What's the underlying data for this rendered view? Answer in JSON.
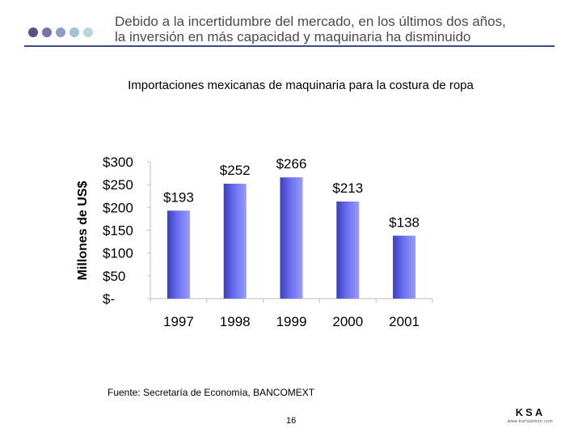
{
  "header": {
    "title_line1": "Debido a la incertidumbre del mercado, en los últimos dos años,",
    "title_line2": "la inversión en más capacidad y maquinaria ha disminuido",
    "dot_colors": [
      "#5a4f86",
      "#7a72a4",
      "#8f9bc4",
      "#a3c2d6",
      "#b8d6dc"
    ]
  },
  "subtitle": "Importaciones mexicanas de maquinaria para la costura de ropa",
  "chart_data": {
    "type": "bar",
    "categories": [
      "1997",
      "1998",
      "1999",
      "2000",
      "2001"
    ],
    "values": [
      193,
      252,
      266,
      213,
      138
    ],
    "data_labels": [
      "$193",
      "$252",
      "$266",
      "$213",
      "$138"
    ],
    "ylabel": "Millones de US$",
    "ylim": [
      0,
      300
    ],
    "yticks": [
      0,
      50,
      100,
      150,
      200,
      250,
      300
    ],
    "ytick_labels": [
      "$-",
      "$50",
      "$100",
      "$150",
      "$200",
      "$250",
      "$300"
    ],
    "grid": false,
    "bar_color": "#6a6ef0"
  },
  "footer": {
    "source": "Fuente: Secretaría de Economía, BANCOMEXT",
    "page_number": "16",
    "logo_text": "KSA",
    "logo_subtext": "www.kurtsalmon.com"
  }
}
